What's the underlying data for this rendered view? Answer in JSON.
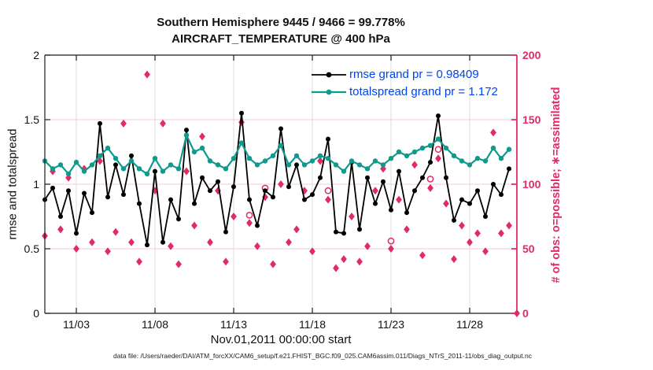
{
  "title": {
    "line1": "Southern Hemisphere 9445 / 9466 = 99.778%",
    "line2": "AIRCRAFT_TEMPERATURE @ 400 hPa"
  },
  "axes": {
    "left": {
      "label": "rmse and totalspread",
      "ticks": [
        0,
        0.5,
        1,
        1.5,
        2
      ],
      "range": [
        0,
        2
      ]
    },
    "right": {
      "label": "# of obs: o=possible; ∗=assimilated",
      "ticks": [
        0,
        50,
        100,
        150,
        200
      ],
      "range": [
        0,
        200
      ]
    },
    "x": {
      "label": "Nov.01,2011 00:00:00 start",
      "tick_labels": [
        "11/03",
        "11/08",
        "11/13",
        "11/18",
        "11/23",
        "11/28"
      ],
      "tick_days": [
        3,
        8,
        13,
        18,
        23,
        28
      ],
      "range_days": [
        1,
        31
      ]
    }
  },
  "legend": [
    {
      "label": "rmse grand pr = 0.98409",
      "series": "rmse"
    },
    {
      "label": "totalspread grand pr = 1.172",
      "series": "totalspread"
    }
  ],
  "footnote": "data file: /Users/raeder/DAI/ATM_forcXX/CAM6_setup/f.e21.FHIST_BGC.f09_025.CAM6assim.011/Diags_NTrS_2011-11/obs_diag_output.nc",
  "colors": {
    "rmse": "#000000",
    "totalspread": "#0f9a8d",
    "obs": "#e12b63",
    "legend_text": "#0044ee",
    "grid_vertical": "#dcdcdc",
    "grid_horizontal": "#f3cdd9",
    "axis": "#1a1a1a"
  },
  "chart_data": {
    "type": "line",
    "x_units": "day of Nov 2011, 12-hourly bins",
    "x_days": [
      1.0,
      1.5,
      2.0,
      2.5,
      3.0,
      3.5,
      4.0,
      4.5,
      5.0,
      5.5,
      6.0,
      6.5,
      7.0,
      7.5,
      8.0,
      8.5,
      9.0,
      9.5,
      10.0,
      10.5,
      11.0,
      11.5,
      12.0,
      12.5,
      13.0,
      13.5,
      14.0,
      14.5,
      15.0,
      15.5,
      16.0,
      16.5,
      17.0,
      17.5,
      18.0,
      18.5,
      19.0,
      19.5,
      20.0,
      20.5,
      21.0,
      21.5,
      22.0,
      22.5,
      23.0,
      23.5,
      24.0,
      24.5,
      25.0,
      25.5,
      26.0,
      26.5,
      27.0,
      27.5,
      28.0,
      28.5,
      29.0,
      29.5,
      30.0,
      30.5
    ],
    "series": [
      {
        "name": "rmse",
        "axis": "left",
        "values": [
          0.88,
          0.97,
          0.75,
          0.95,
          0.62,
          0.93,
          0.78,
          1.47,
          0.9,
          1.15,
          0.92,
          1.22,
          0.85,
          0.53,
          1.1,
          0.55,
          0.88,
          0.73,
          1.42,
          0.85,
          1.05,
          0.95,
          1.02,
          0.63,
          0.98,
          1.55,
          0.88,
          0.68,
          0.95,
          0.9,
          1.43,
          0.98,
          1.15,
          0.88,
          0.92,
          1.05,
          1.35,
          0.63,
          0.62,
          1.17,
          0.65,
          1.05,
          0.85,
          1.02,
          0.8,
          1.1,
          0.78,
          0.95,
          1.05,
          1.17,
          1.53,
          1.05,
          0.72,
          0.88,
          0.85,
          0.95,
          0.75,
          1.0,
          0.92,
          1.12
        ]
      },
      {
        "name": "totalspread",
        "axis": "left",
        "values": [
          1.18,
          1.12,
          1.15,
          1.08,
          1.17,
          1.1,
          1.15,
          1.22,
          1.28,
          1.2,
          1.12,
          1.18,
          1.12,
          1.08,
          1.2,
          1.1,
          1.15,
          1.12,
          1.38,
          1.25,
          1.28,
          1.18,
          1.15,
          1.12,
          1.2,
          1.32,
          1.2,
          1.15,
          1.18,
          1.22,
          1.3,
          1.15,
          1.22,
          1.15,
          1.18,
          1.22,
          1.2,
          1.15,
          1.1,
          1.18,
          1.15,
          1.12,
          1.18,
          1.15,
          1.2,
          1.25,
          1.22,
          1.25,
          1.28,
          1.3,
          1.35,
          1.28,
          1.22,
          1.18,
          1.15,
          1.2,
          1.18,
          1.28,
          1.2,
          1.27
        ]
      }
    ],
    "obs": {
      "assimilated": {
        "marker": "diamond-asterisk",
        "axis": "right",
        "x": [
          1.0,
          1.5,
          2.0,
          2.5,
          3.0,
          3.5,
          4.0,
          4.5,
          5.0,
          5.5,
          6.0,
          6.5,
          7.0,
          7.5,
          8.0,
          8.5,
          9.0,
          9.5,
          10.0,
          10.5,
          11.0,
          11.5,
          12.0,
          12.5,
          13.0,
          13.5,
          14.0,
          14.5,
          15.0,
          15.5,
          16.0,
          16.5,
          17.0,
          17.5,
          18.0,
          18.5,
          19.0,
          19.5,
          20.0,
          20.5,
          21.0,
          21.5,
          22.0,
          22.5,
          23.0,
          23.5,
          24.0,
          24.5,
          25.0,
          25.5,
          26.0,
          26.5,
          27.0,
          27.5,
          28.0,
          28.5,
          29.0,
          29.5,
          30.0,
          30.5,
          31.0
        ],
        "values": [
          60,
          110,
          65,
          105,
          50,
          112,
          55,
          118,
          48,
          63,
          147,
          55,
          40,
          185,
          95,
          147,
          52,
          38,
          110,
          68,
          137,
          55,
          95,
          40,
          75,
          148,
          70,
          52,
          90,
          38,
          100,
          55,
          65,
          95,
          48,
          118,
          88,
          35,
          42,
          75,
          40,
          52,
          95,
          112,
          50,
          88,
          65,
          115,
          45,
          97,
          120,
          85,
          42,
          68,
          55,
          62,
          48,
          140,
          62,
          68,
          0
        ]
      },
      "possible_visible": {
        "marker": "open-circle",
        "axis": "right",
        "x": [
          14.0,
          15.0,
          19.0,
          23.0,
          25.5,
          26.0
        ],
        "values": [
          76,
          97,
          95,
          56,
          104,
          127
        ]
      }
    }
  }
}
